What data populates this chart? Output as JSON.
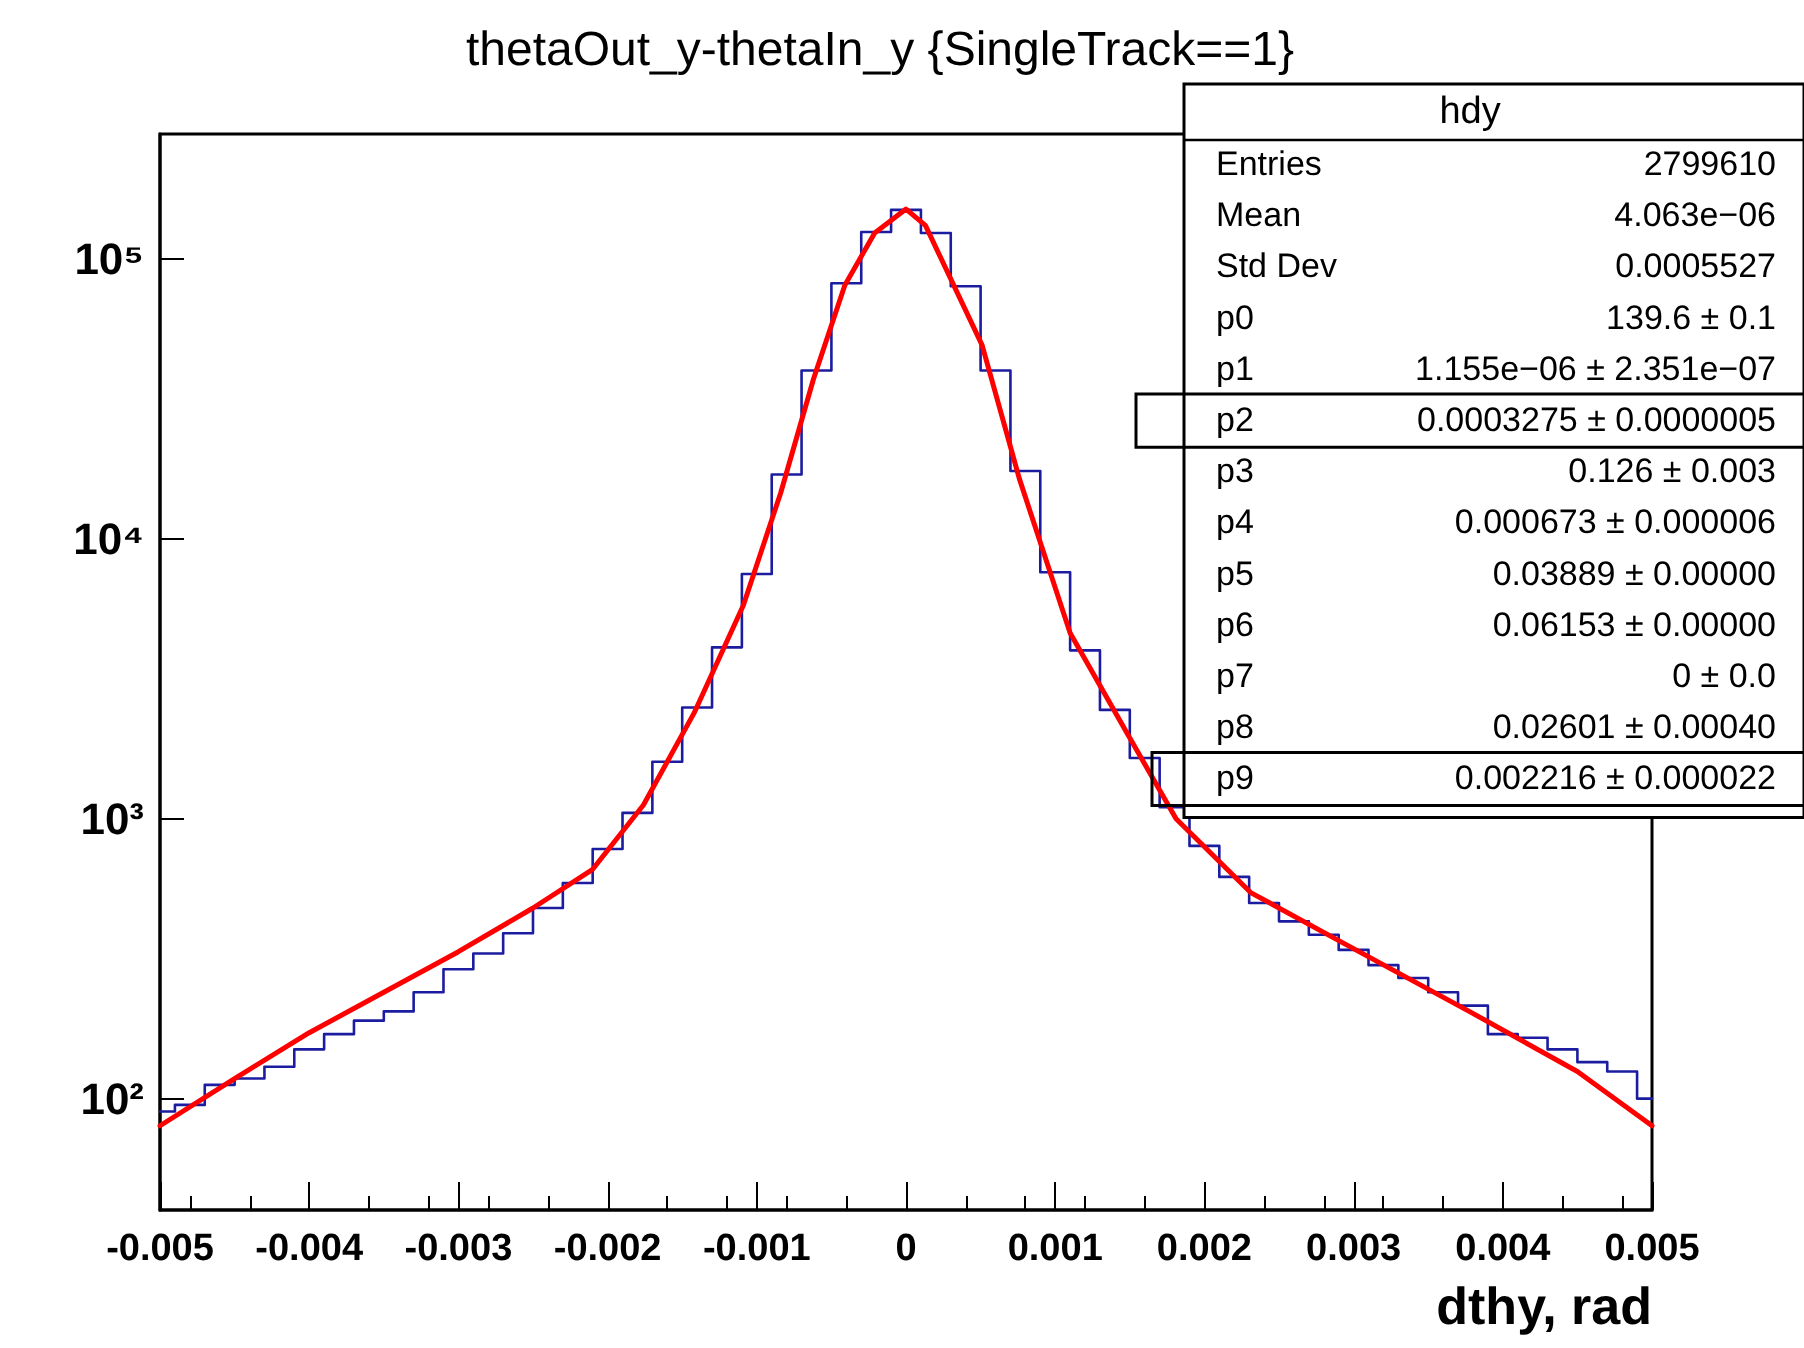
{
  "chart_data": {
    "type": "line",
    "title": "thetaOut_y-thetaIn_y {SingleTrack==1}",
    "xlabel": "dthy, rad",
    "log": "y",
    "grid": false,
    "xlim": [
      -0.005,
      0.005
    ],
    "xticks": [
      -0.005,
      -0.004,
      -0.003,
      -0.002,
      -0.001,
      0,
      0.001,
      0.002,
      0.003,
      0.004,
      0.005
    ],
    "ylim": [
      40,
      280000
    ],
    "yticks": [
      {
        "value": 100,
        "label": "10²"
      },
      {
        "value": 1000,
        "label": "10³"
      },
      {
        "value": 10000,
        "label": "10⁴"
      },
      {
        "value": 100000,
        "label": "10⁵"
      }
    ],
    "series": [
      {
        "type": "step",
        "color": "#1c1ca0",
        "x": [
          -0.005,
          -0.0048,
          -0.0046,
          -0.0044,
          -0.0042,
          -0.004,
          -0.0038,
          -0.0036,
          -0.0034,
          -0.0032,
          -0.003,
          -0.0028,
          -0.0026,
          -0.0024,
          -0.0022,
          -0.002,
          -0.0018,
          -0.0016,
          -0.0014,
          -0.0012,
          -0.001,
          -0.0008,
          -0.0006,
          -0.0004,
          -0.0002,
          0,
          0.0002,
          0.0004,
          0.0006,
          0.0008,
          0.001,
          0.0012,
          0.0014,
          0.0016,
          0.0018,
          0.002,
          0.0022,
          0.0024,
          0.0026,
          0.0028,
          0.003,
          0.0032,
          0.0034,
          0.0036,
          0.0038,
          0.004,
          0.0042,
          0.0044,
          0.0046,
          0.0048,
          0.005
        ],
        "values": [
          90,
          95,
          112,
          118,
          130,
          150,
          170,
          190,
          205,
          240,
          290,
          330,
          390,
          480,
          590,
          780,
          1050,
          1600,
          2500,
          4100,
          7500,
          17000,
          40000,
          82000,
          125000,
          150000,
          124000,
          80000,
          40000,
          17500,
          7600,
          4000,
          2450,
          1650,
          1100,
          800,
          620,
          500,
          430,
          385,
          340,
          300,
          270,
          240,
          215,
          170,
          165,
          150,
          135,
          125,
          100
        ]
      },
      {
        "color": "#ff0000",
        "x": [
          -0.005,
          -0.0045,
          -0.004,
          -0.0035,
          -0.003,
          -0.0025,
          -0.0021,
          -0.00176,
          -0.00142,
          -0.00109,
          -0.00084,
          -0.00062,
          -0.00041,
          -0.00021,
          0,
          0.00013,
          0.00051,
          0.00076,
          0.0011,
          0.00148,
          0.00181,
          0.00231,
          0.00295,
          0.00379,
          0.0045,
          0.005
        ],
        "values": [
          80,
          118,
          172,
          240,
          335,
          480,
          660,
          1120,
          2390,
          5800,
          14600,
          37300,
          80700,
          124000,
          151000,
          132000,
          49300,
          16400,
          4610,
          2030,
          1000,
          545,
          355,
          203,
          125,
          80
        ]
      }
    ],
    "annotations": [
      "hdy",
      "Entries",
      "2799610",
      "Mean",
      "4.063e−06",
      "Std Dev",
      "0.0005527",
      "p0",
      "139.6 ± 0.1",
      "p1",
      "1.155e−06 ± 2.351e−07",
      "p2",
      "0.0003275 ± 0.0000005",
      "p3",
      "0.126 ± 0.003",
      "p4",
      "0.000673 ± 0.000006",
      "p5",
      "0.03889 ± 0.00000",
      "p6",
      "0.06153 ± 0.00000",
      "p7",
      "0 ± 0.0",
      "p8",
      "0.02601 ± 0.00040",
      "p9",
      "0.002216 ± 0.000022"
    ]
  }
}
